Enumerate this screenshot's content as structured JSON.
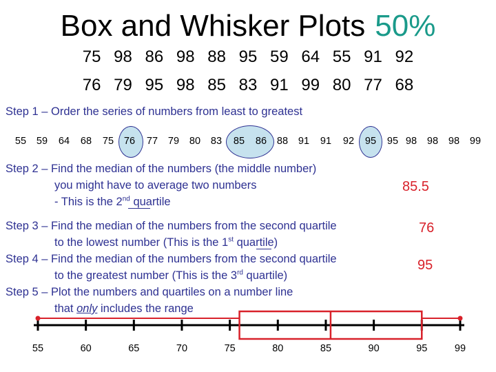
{
  "title": {
    "text": "Box and Whisker Plots",
    "percent": "50%"
  },
  "data_rows": [
    [
      "75",
      "98",
      "86",
      "98",
      "88",
      "95",
      "59",
      "64",
      "55",
      "91",
      "92"
    ],
    [
      "76",
      "79",
      "95",
      "98",
      "85",
      "83",
      "91",
      "99",
      "80",
      "77",
      "68"
    ]
  ],
  "step1": {
    "text": "Step 1 – Order the series of numbers from least to greatest"
  },
  "ordered": [
    "55",
    "59",
    "64",
    "68",
    "75",
    "76",
    "77",
    "79",
    "80",
    "83",
    "85",
    "86",
    "88",
    "91",
    "91",
    "92",
    "95",
    "95",
    "98",
    "98",
    "98",
    "99"
  ],
  "step2": {
    "line1": "Step 2 – Find the median of the numbers (the middle number)",
    "line2": "you might have to average two numbers",
    "line3_pre": "- This is the 2",
    "line3_sup": "nd",
    "line3_post": " quartile",
    "answer": "85.5"
  },
  "step3": {
    "line1": "Step 3 – Find the median of the numbers from the second quartile",
    "line2_pre": "to the lowest number (This is the 1",
    "line2_sup": "st",
    "line2_post": " quartile)",
    "answer": "76"
  },
  "step4": {
    "line1": "Step 4 – Find the median of the numbers from the second quartile",
    "line2_pre": "to the greatest number (This is the 3",
    "line2_sup": "rd",
    "line2_post": " quartile)",
    "answer": "95"
  },
  "step5": {
    "line1": "Step 5 – Plot the numbers and quartiles on a number line",
    "line2_pre": "that ",
    "line2_em": "only",
    "line2_post": " includes the range"
  },
  "colors": {
    "accent": "#1a9a8a",
    "step_text": "#2e3192",
    "answer": "#d8212a",
    "circle_fill": "#c6e2ee"
  },
  "chart_data": {
    "type": "box",
    "axis_ticks": [
      55,
      60,
      65,
      70,
      75,
      80,
      85,
      90,
      95,
      99
    ],
    "xlim": [
      55,
      99
    ],
    "min": 55,
    "q1": 76,
    "median": 85.5,
    "q3": 95,
    "max": 99
  }
}
